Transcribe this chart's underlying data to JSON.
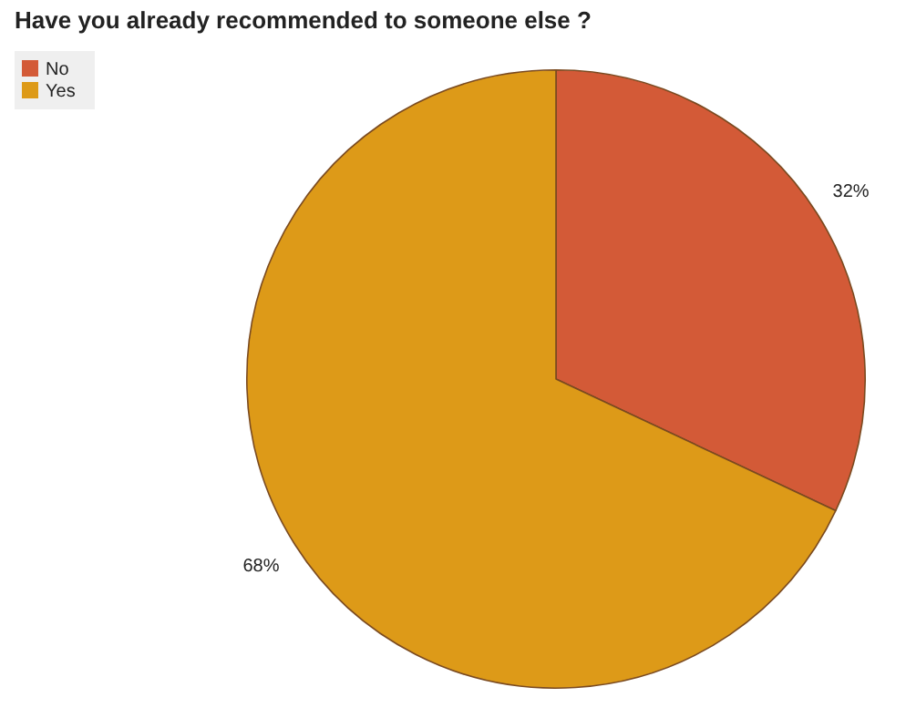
{
  "chart_data": {
    "type": "pie",
    "title": "Have you already recommended to someone else ?",
    "categories": [
      "No",
      "Yes"
    ],
    "values": [
      32,
      68
    ],
    "colors": [
      "#d35a37",
      "#dd9a18"
    ],
    "value_labels": [
      "32%",
      "68%"
    ],
    "legend": "top left"
  }
}
